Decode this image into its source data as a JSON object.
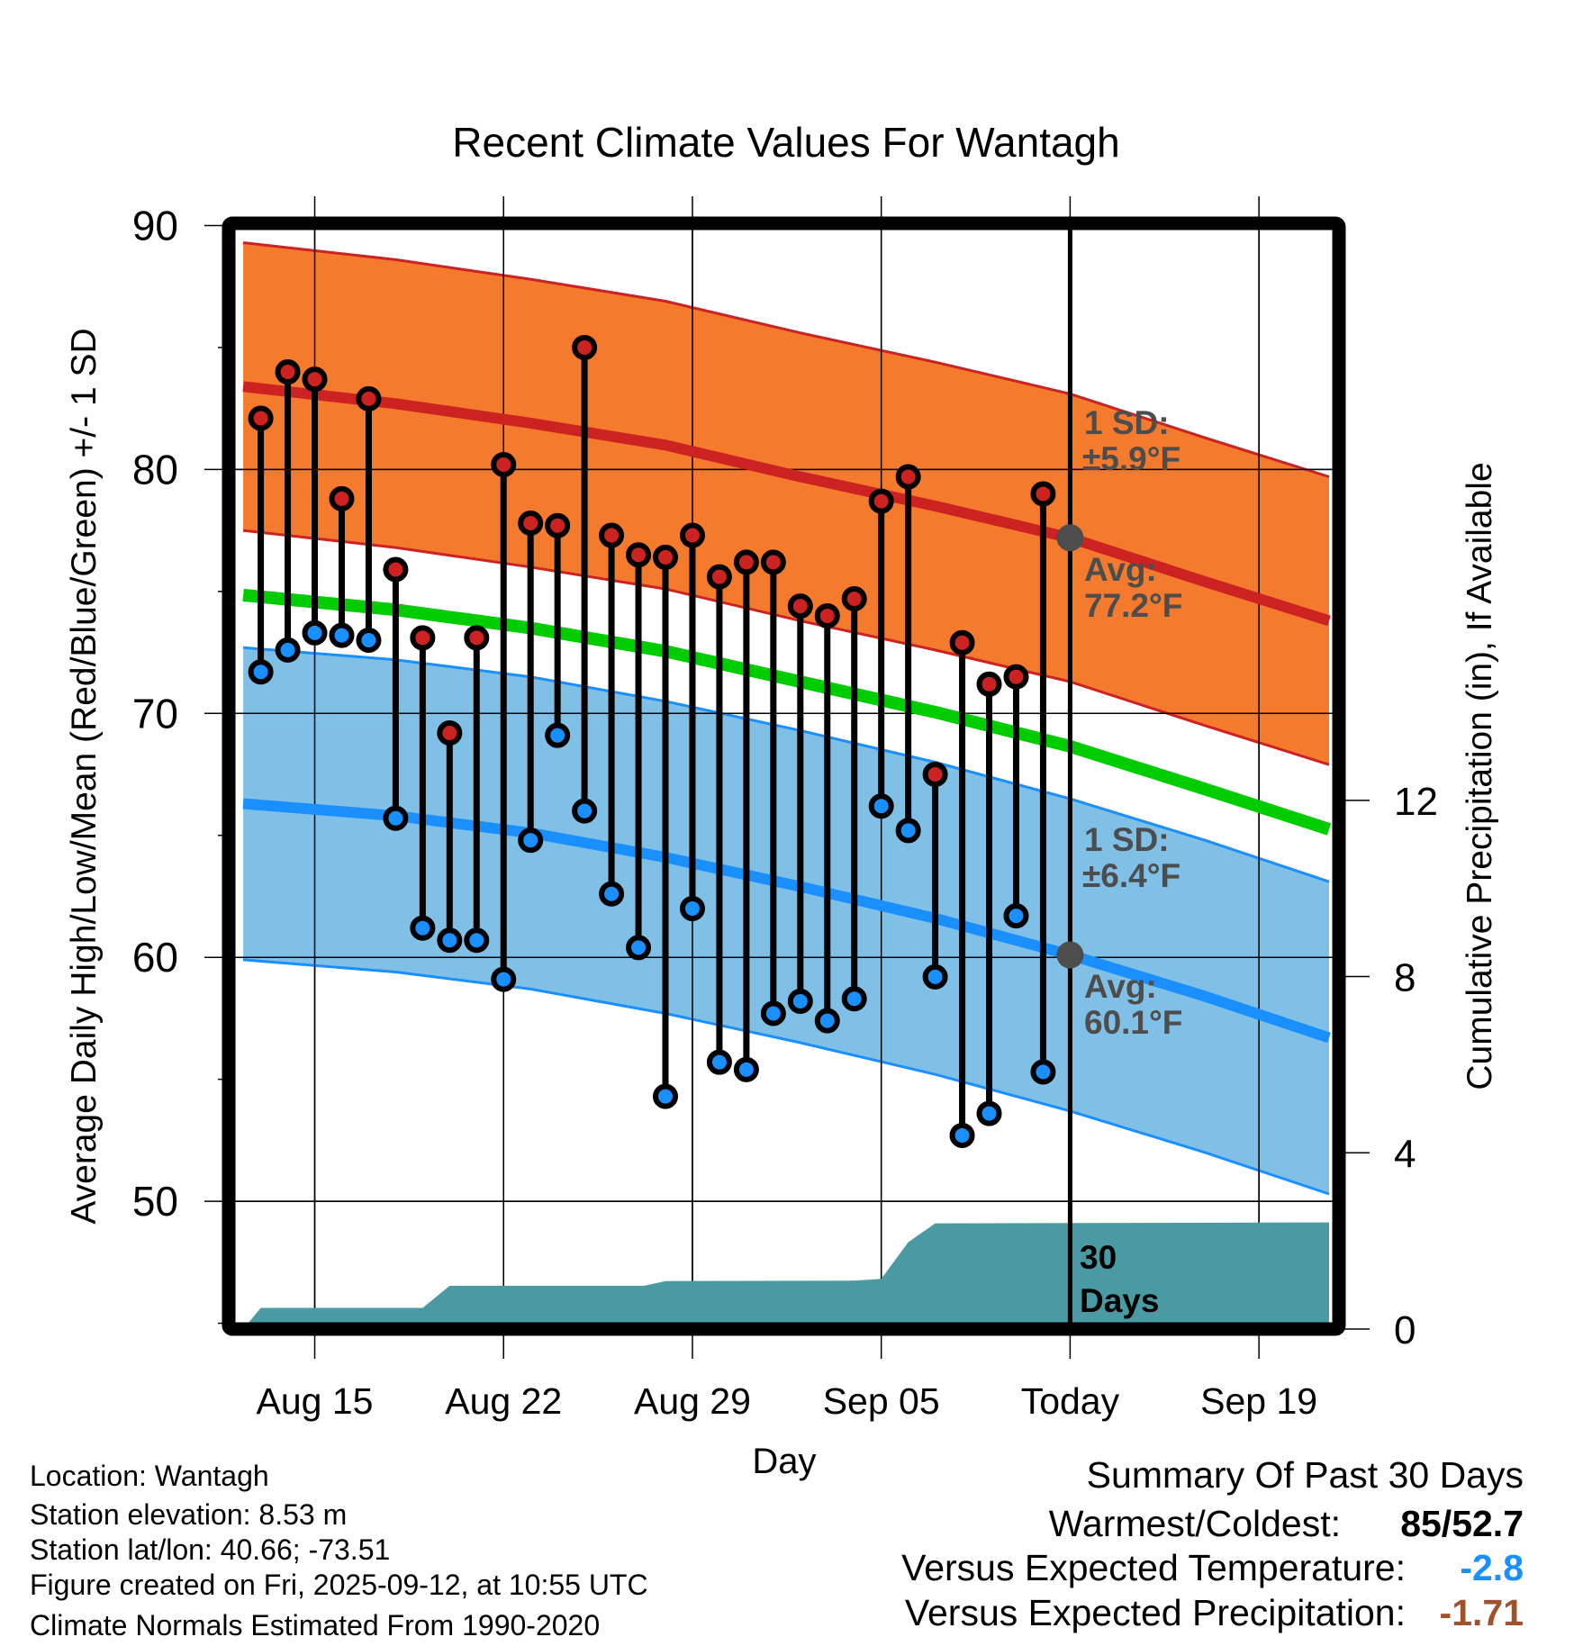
{
  "chart_data": {
    "type": "line",
    "title": "Recent Climate Values For Wantagh",
    "xlabel": "Day",
    "ylabel": "Average Daily High/Low/Mean (Red/Blue/Green) +/- 1 SD",
    "y2label": "Cumulative Precipitation (in), If Available",
    "ylim": [
      44.75,
      90
    ],
    "y2lim": [
      0,
      12
    ],
    "yticks": [
      50,
      60,
      70,
      80,
      90
    ],
    "y2ticks": [
      0,
      4,
      8,
      12
    ],
    "grid": true,
    "x_start_date": "Aug 13",
    "xticks": [
      {
        "day": 2,
        "label": "Aug 15"
      },
      {
        "day": 9,
        "label": "Aug 22"
      },
      {
        "day": 16,
        "label": "Aug 29"
      },
      {
        "day": 23,
        "label": "Sep 05"
      },
      {
        "day": 30,
        "label": "Today"
      },
      {
        "day": 37,
        "label": "Sep 19"
      }
    ],
    "xlim_days": [
      -0.65,
      39.6
    ],
    "today_day": 30,
    "observed": {
      "days": [
        0,
        1,
        2,
        3,
        4,
        5,
        6,
        7,
        8,
        9,
        10,
        11,
        12,
        13,
        14,
        15,
        16,
        17,
        18,
        19,
        20,
        21,
        22,
        23,
        24,
        25,
        26,
        27,
        28,
        29
      ],
      "high": [
        82.1,
        84.0,
        83.7,
        78.8,
        82.9,
        75.9,
        73.1,
        69.2,
        73.1,
        80.2,
        77.8,
        77.7,
        85.0,
        77.3,
        76.5,
        76.4,
        77.3,
        75.6,
        76.2,
        76.2,
        74.4,
        74.0,
        74.7,
        78.7,
        79.7,
        67.5,
        72.9,
        71.2,
        71.5,
        79.0
      ],
      "low": [
        71.7,
        72.6,
        73.3,
        73.2,
        73.0,
        65.7,
        61.2,
        60.7,
        60.7,
        59.1,
        64.8,
        69.1,
        66.0,
        62.6,
        60.4,
        54.3,
        62.0,
        55.7,
        55.4,
        57.7,
        58.2,
        57.4,
        58.3,
        66.2,
        65.2,
        59.2,
        52.7,
        53.6,
        61.7,
        55.3
      ]
    },
    "normals": {
      "days": [
        -0.65,
        5,
        10,
        15,
        20,
        25,
        30,
        35,
        39.6
      ],
      "high_avg": [
        83.4,
        82.7,
        81.9,
        81.0,
        79.7,
        78.5,
        77.2,
        75.4,
        73.8
      ],
      "low_avg": [
        66.3,
        65.8,
        65.1,
        64.1,
        62.9,
        61.6,
        60.1,
        58.4,
        56.7
      ],
      "high_sd": 5.9,
      "low_sd": 6.4
    },
    "precip_cumulative": {
      "days": [
        -0.65,
        0,
        6,
        7,
        14.2,
        15,
        22,
        23,
        24,
        25,
        39.6
      ],
      "inches": [
        0,
        0.48,
        0.48,
        0.98,
        0.98,
        1.09,
        1.1,
        1.14,
        1.97,
        2.4,
        2.42
      ]
    },
    "annotations": {
      "high_sd_label": "1 SD:",
      "high_sd_value": "±5.9°F",
      "high_avg_label": "Avg:",
      "high_avg_value": "77.2°F",
      "low_sd_label": "1 SD:",
      "low_sd_value": "±6.4°F",
      "low_avg_label": "Avg:",
      "low_avg_value": "60.1°F",
      "window_num": "30",
      "window_unit": "Days"
    },
    "colors": {
      "high_band": "#f47a2e",
      "high_line": "#cc2222",
      "low_band": "#80bfe6",
      "low_line": "#1a8fff",
      "mean_line": "#00cc00",
      "precip": "#4a9aa3",
      "today_marker": "#4d4d4d"
    }
  },
  "info": {
    "location": "Location: Wantagh",
    "elevation": "Station elevation: 8.53 m",
    "latlon": "Station lat/lon: 40.66; -73.51",
    "created": "Figure created on Fri, 2025-09-12, at 10:55 UTC",
    "normals": "Climate Normals Estimated From 1990-2020"
  },
  "summary": {
    "title": "Summary Of Past 30 Days",
    "warm_cold_label": "Warmest/Coldest:",
    "warm_cold_value": "85/52.7",
    "temp_label": "Versus Expected Temperature:",
    "temp_value": "-2.8",
    "temp_color": "#1a8fff",
    "precip_label": "Versus Expected Precipitation:",
    "precip_value": "-1.71",
    "precip_color": "#a0522d"
  }
}
